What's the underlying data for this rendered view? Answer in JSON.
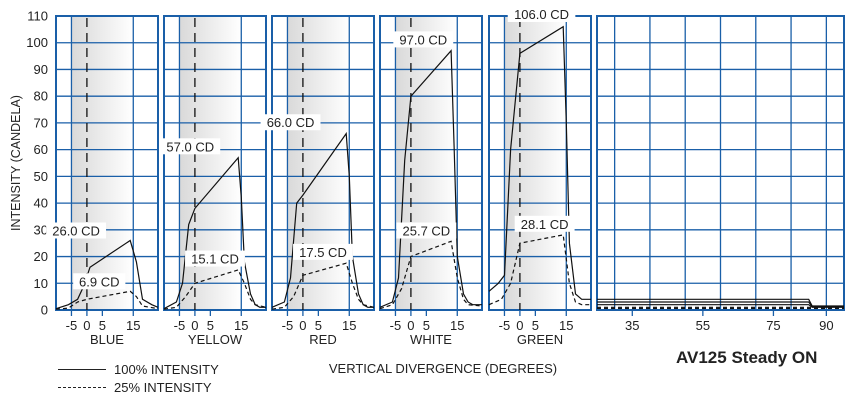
{
  "product_title": "AV125 Steady ON",
  "legend": [
    {
      "label": "100% INTENSITY",
      "style": "solid"
    },
    {
      "label": "25% INTENSITY",
      "style": "dashed"
    }
  ],
  "chart_data": {
    "type": "line",
    "ylabel": "INTENSITY (CANDELA)",
    "xlabel": "VERTICAL DIVERGENCE (DEGREES)",
    "ylim": [
      0,
      110
    ],
    "yticks": [
      0,
      10,
      20,
      30,
      40,
      50,
      60,
      70,
      80,
      90,
      100,
      110
    ],
    "grid": true,
    "colors": {
      "grid": "#1a5fa8",
      "line": "#111111",
      "shade_band": "#d9d9d9"
    },
    "panels": [
      {
        "name": "BLUE",
        "xlim": [
          -10,
          23
        ],
        "xticks": [
          -5,
          0,
          5,
          15
        ],
        "series": [
          {
            "name": "100% INTENSITY",
            "style": "solid",
            "x": [
              -10,
              -6,
              -3,
              -1,
              1,
              14,
              16,
              18,
              21,
              23
            ],
            "y": [
              0.5,
              2,
              4,
              9,
              16,
              26,
              18,
              4,
              2,
              1
            ]
          },
          {
            "name": "25% INTENSITY",
            "style": "dashed",
            "x": [
              -10,
              -6,
              -3,
              0,
              14,
              16,
              18,
              23
            ],
            "y": [
              0.3,
              0.7,
              3,
              4,
              7,
              5,
              1.5,
              0.5
            ]
          }
        ],
        "annotations": [
          {
            "text": "26.0 CD",
            "x": -3.5,
            "y": 29
          },
          {
            "text": "6.9 CD",
            "x": 4,
            "y": 10
          }
        ]
      },
      {
        "name": "YELLOW",
        "xlim": [
          -10,
          23
        ],
        "xticks": [
          -5,
          0,
          5,
          15
        ],
        "series": [
          {
            "name": "100% INTENSITY",
            "style": "solid",
            "x": [
              -10,
              -6,
              -4,
              -2,
              0,
              14,
              15,
              16,
              18,
              19.5,
              21,
              23
            ],
            "y": [
              0.5,
              3,
              10,
              32,
              38,
              57,
              42,
              18,
              6,
              2,
              1,
              1
            ]
          },
          {
            "name": "25% INTENSITY",
            "style": "dashed",
            "x": [
              -10,
              -6,
              -3,
              0,
              14,
              16,
              18,
              19.5,
              23
            ],
            "y": [
              0.3,
              1,
              5,
              10,
              15,
              10,
              4,
              2,
              1
            ]
          }
        ],
        "annotations": [
          {
            "text": "57.0 CD",
            "x": -1.5,
            "y": 60.5
          },
          {
            "text": "15.1 CD",
            "x": 6.5,
            "y": 18.5
          }
        ]
      },
      {
        "name": "RED",
        "xlim": [
          -10,
          23
        ],
        "xticks": [
          -5,
          0,
          5,
          15
        ],
        "series": [
          {
            "name": "100% INTENSITY",
            "style": "solid",
            "x": [
              -10,
              -6,
              -4,
              -2,
              0,
              14,
              15,
              16,
              18,
              19.5,
              21,
              23
            ],
            "y": [
              1,
              3,
              12,
              40,
              43,
              66,
              50,
              20,
              6,
              2,
              1,
              1
            ]
          },
          {
            "name": "25% INTENSITY",
            "style": "dashed",
            "x": [
              -10,
              -6,
              -3,
              0,
              14,
              16,
              18,
              19.5,
              23
            ],
            "y": [
              0.3,
              1,
              5,
              13,
              17.5,
              10,
              4,
              2,
              1
            ]
          }
        ],
        "annotations": [
          {
            "text": "66.0 CD",
            "x": -4,
            "y": 69.5
          },
          {
            "text": "17.5 CD",
            "x": 6.5,
            "y": 21
          }
        ]
      },
      {
        "name": "WHITE",
        "xlim": [
          -10,
          23
        ],
        "xticks": [
          -5,
          0,
          5,
          15
        ],
        "series": [
          {
            "name": "100% INTENSITY",
            "style": "solid",
            "x": [
              -10,
              -6,
              -4,
              -2,
              0,
              13,
              14,
              15,
              17,
              18.5,
              20,
              23
            ],
            "y": [
              1,
              3,
              12,
              56,
              80,
              97,
              60,
              20,
              6,
              3,
              2,
              2
            ]
          },
          {
            "name": "25% INTENSITY",
            "style": "dashed",
            "x": [
              -10,
              -6,
              -3,
              0,
              13,
              15,
              17,
              18.5,
              23
            ],
            "y": [
              0.5,
              2,
              8,
              20,
              25.7,
              12,
              4,
              2,
              1.5
            ]
          }
        ],
        "annotations": [
          {
            "text": "97.0 CD",
            "x": 4,
            "y": 100.5
          },
          {
            "text": "25.7 CD",
            "x": 5,
            "y": 29
          }
        ]
      },
      {
        "name": "GREEN",
        "xlim": [
          -10,
          23
        ],
        "xticks": [
          -5,
          0,
          5,
          15
        ],
        "series": [
          {
            "name": "100% INTENSITY",
            "style": "solid",
            "x": [
              -10,
              -7,
              -5,
              -3,
              0,
              14,
              15,
              16,
              18,
              20,
              23
            ],
            "y": [
              7,
              10,
              13,
              60,
              96,
              106,
              70,
              25,
              6,
              4,
              4
            ]
          },
          {
            "name": "25% INTENSITY",
            "style": "dashed",
            "x": [
              -10,
              -6,
              -3,
              0,
              14,
              16,
              18,
              20,
              23
            ],
            "y": [
              2,
              4,
              10,
              25,
              28.1,
              10,
              3,
              2,
              2
            ]
          }
        ],
        "annotations": [
          {
            "text": "106.0 CD",
            "x": 7,
            "y": 110
          },
          {
            "text": "28.1 CD",
            "x": 8,
            "y": 31.5
          }
        ]
      },
      {
        "name": "",
        "xlim": [
          25,
          95
        ],
        "xticks": [
          35,
          55,
          75,
          90
        ],
        "series": [
          {
            "name": "100% INTENSITY",
            "style": "solid",
            "x": [
              25,
              85,
              86,
              95
            ],
            "y": [
              4,
              4,
              1.5,
              1.5
            ]
          },
          {
            "name": "100% INTENSITY",
            "style": "solid",
            "x": [
              25,
              85,
              86,
              95
            ],
            "y": [
              3,
              3,
              1.2,
              1.2
            ]
          },
          {
            "name": "100% INTENSITY",
            "style": "solid",
            "x": [
              25,
              85,
              86,
              95
            ],
            "y": [
              2,
              2,
              1,
              1
            ]
          },
          {
            "name": "25% INTENSITY",
            "style": "dashed",
            "x": [
              25,
              95
            ],
            "y": [
              1,
              1
            ]
          },
          {
            "name": "25% INTENSITY",
            "style": "dashed",
            "x": [
              25,
              95
            ],
            "y": [
              0.6,
              0.6
            ]
          }
        ],
        "annotations": []
      }
    ]
  }
}
